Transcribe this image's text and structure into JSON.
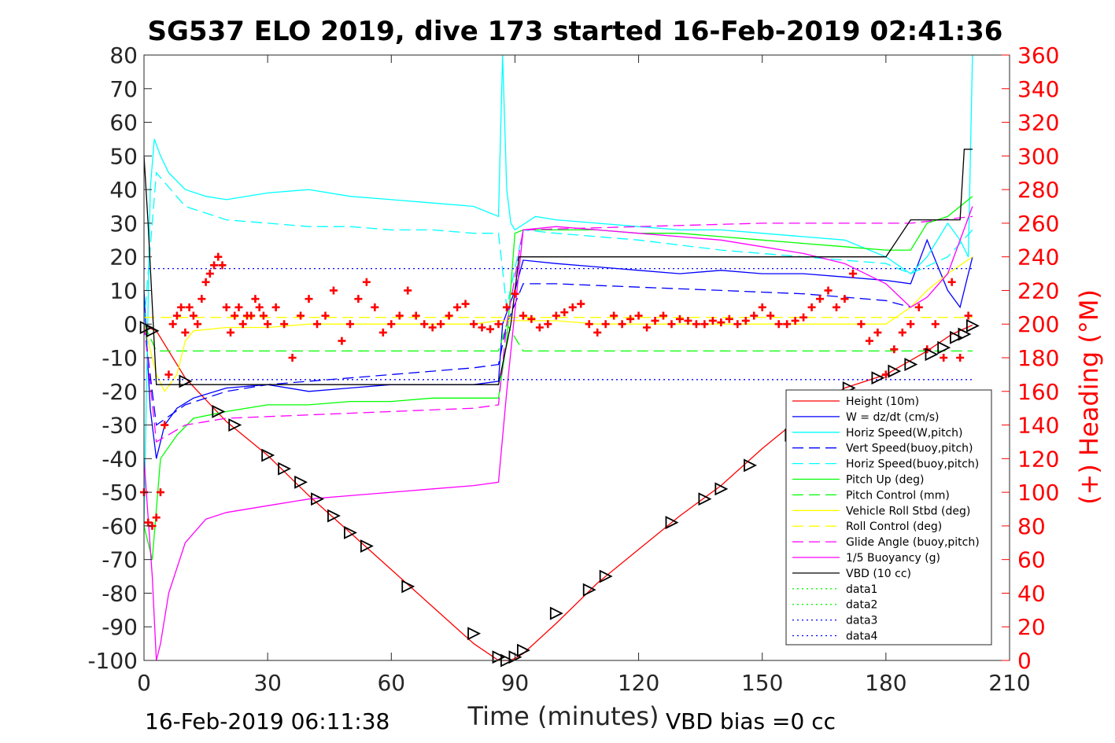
{
  "chart_data": {
    "type": "line",
    "title": "SG537 ELO 2019, dive 173 started 16-Feb-2019 02:41:36",
    "xlabel": "Time (minutes)",
    "ylabel_right": "(+) Heading (°M)",
    "xlim": [
      0,
      210
    ],
    "ylim": [
      -100,
      80
    ],
    "ylim_right": [
      0,
      360
    ],
    "xticks": [
      "0",
      "30",
      "60",
      "90",
      "120",
      "150",
      "180",
      "210"
    ],
    "yticks": [
      "80",
      "70",
      "60",
      "50",
      "40",
      "30",
      "20",
      "10",
      "0",
      "-10",
      "-20",
      "-30",
      "-40",
      "-50",
      "-60",
      "-70",
      "-80",
      "-90",
      "-100"
    ],
    "yticks_right": [
      "360",
      "340",
      "320",
      "300",
      "280",
      "260",
      "240",
      "220",
      "200",
      "180",
      "160",
      "140",
      "120",
      "100",
      "80",
      "60",
      "40",
      "20",
      "0"
    ],
    "footer_left": "16-Feb-2019 06:11:38",
    "footer_right": "VBD bias =0 cc",
    "legend_position": "bottom-right",
    "series": [
      {
        "name": "Height (10m)",
        "color": "#ff0000",
        "style": "solid",
        "x": [
          0,
          3,
          10,
          20,
          30,
          40,
          50,
          60,
          70,
          80,
          86,
          89,
          92,
          100,
          110,
          120,
          130,
          140,
          150,
          160,
          170,
          180,
          190,
          196,
          201
        ],
        "y": [
          -0.5,
          -2,
          -16,
          -29,
          -39,
          -51,
          -62,
          -73,
          -84,
          -95,
          -100,
          -100,
          -98,
          -89,
          -77,
          -67,
          -57,
          -48,
          -37,
          -27,
          -19,
          -15,
          -8,
          -3,
          -0.3
        ]
      },
      {
        "name": "W = dz/dt (cm/s)",
        "color": "#0000ff",
        "style": "solid",
        "x": [
          0,
          1.5,
          3,
          5,
          8,
          12,
          20,
          30,
          40,
          50,
          60,
          70,
          80,
          86,
          87,
          90,
          92,
          100,
          110,
          120,
          130,
          140,
          150,
          160,
          170,
          180,
          186,
          190,
          195,
          198,
          201
        ],
        "y": [
          10,
          -25,
          -40,
          -30,
          -25,
          -22,
          -19,
          -18,
          -20,
          -19,
          -18,
          -18,
          -18,
          -17,
          0,
          10,
          19,
          18,
          17,
          16,
          15,
          16,
          15,
          15,
          14,
          13,
          12,
          25,
          10,
          5,
          20
        ]
      },
      {
        "name": "Horiz Speed(W,pitch)",
        "color": "#00ffff",
        "style": "solid",
        "x": [
          0,
          1.5,
          2.5,
          4,
          6,
          10,
          15,
          20,
          30,
          40,
          50,
          60,
          70,
          80,
          86,
          87,
          88,
          89,
          90,
          95,
          100,
          110,
          120,
          130,
          140,
          150,
          160,
          170,
          180,
          186,
          190,
          195,
          198,
          200,
          201
        ],
        "y": [
          -60,
          40,
          55,
          50,
          45,
          40,
          38,
          37,
          39,
          40,
          38,
          37,
          36,
          35,
          32,
          80,
          40,
          30,
          28,
          32,
          31,
          30,
          29,
          28,
          28,
          27,
          26,
          25,
          20,
          15,
          20,
          30,
          25,
          20,
          80
        ]
      },
      {
        "name": "Vert Speed(buoy,pitch)",
        "color": "#0000ff",
        "style": "dashed",
        "x": [
          0,
          3,
          10,
          20,
          30,
          40,
          50,
          60,
          70,
          80,
          86,
          88,
          92,
          100,
          120,
          140,
          160,
          180,
          186
        ],
        "y": [
          0,
          -30,
          -24,
          -20,
          -18,
          -17,
          -16,
          -15,
          -14,
          -13,
          -12,
          0,
          12,
          12,
          11,
          10,
          9,
          7,
          5
        ]
      },
      {
        "name": "Horiz Speed(buoy,pitch)",
        "color": "#00ffff",
        "style": "dashed",
        "x": [
          0,
          3,
          10,
          20,
          30,
          40,
          50,
          60,
          70,
          80,
          86,
          88,
          92,
          100,
          120,
          140,
          160,
          180,
          186,
          195,
          201
        ],
        "y": [
          0,
          45,
          35,
          31,
          30,
          29,
          29,
          28,
          28,
          27,
          27,
          5,
          28,
          27,
          25,
          22,
          20,
          18,
          15,
          20,
          28
        ]
      },
      {
        "name": "Pitch Up (deg)",
        "color": "#00ff00",
        "style": "solid",
        "x": [
          0,
          2,
          4,
          8,
          12,
          20,
          30,
          40,
          50,
          60,
          70,
          80,
          86,
          88,
          90,
          92,
          100,
          110,
          120,
          130,
          140,
          150,
          160,
          170,
          180,
          186,
          190,
          195,
          201
        ],
        "y": [
          -60,
          -70,
          -40,
          -33,
          -28,
          -26,
          -24,
          -24,
          -23,
          -23,
          -22,
          -22,
          -22,
          -5,
          27,
          28,
          28,
          28,
          27,
          27,
          26,
          25,
          24,
          23,
          22,
          22,
          30,
          32,
          38
        ]
      },
      {
        "name": "Pitch Control (mm)",
        "color": "#00ff00",
        "style": "dashed",
        "x": [
          0,
          3,
          20,
          40,
          60,
          80,
          86,
          88,
          92,
          120,
          150,
          180,
          186,
          201
        ],
        "y": [
          0,
          -8,
          -8,
          -8,
          -8,
          -8,
          -8,
          0,
          -8,
          -8,
          -8,
          -8,
          -8,
          -8
        ]
      },
      {
        "name": "Vehicle Roll Stbd (deg)",
        "color": "#ffff00",
        "style": "solid",
        "x": [
          0,
          3,
          5,
          8,
          10,
          12,
          20,
          30,
          40,
          50,
          60,
          70,
          80,
          86,
          90,
          100,
          110,
          120,
          130,
          140,
          150,
          160,
          170,
          180,
          186,
          190,
          195,
          201
        ],
        "y": [
          0,
          -15,
          -20,
          -15,
          -5,
          -2,
          -1,
          -1,
          0,
          0,
          0,
          0,
          0,
          1,
          1,
          1,
          0,
          0,
          0,
          0,
          0,
          0,
          0,
          0,
          5,
          10,
          15,
          20
        ]
      },
      {
        "name": "Roll Control (deg)",
        "color": "#ffff00",
        "style": "dashed",
        "x": [
          0,
          10,
          20,
          40,
          60,
          80,
          86,
          90,
          120,
          150,
          180,
          201
        ],
        "y": [
          2,
          2,
          2,
          2,
          2,
          2,
          2,
          2,
          2,
          2,
          2,
          2
        ]
      },
      {
        "name": "Glide Angle (buoy,pitch)",
        "color": "#ff00ff",
        "style": "dashed",
        "x": [
          0,
          3,
          10,
          20,
          40,
          60,
          80,
          86,
          88,
          92,
          120,
          150,
          180,
          186,
          201
        ],
        "y": [
          0,
          -35,
          -30,
          -28,
          -27,
          -26,
          -25,
          -24,
          0,
          28,
          29,
          30,
          30,
          30,
          32
        ]
      },
      {
        "name": "1/5 Buoyancy (g)",
        "color": "#ff00ff",
        "style": "solid",
        "x": [
          0,
          2,
          3,
          4,
          6,
          10,
          15,
          20,
          30,
          40,
          50,
          60,
          70,
          80,
          86,
          88,
          92,
          100,
          110,
          120,
          130,
          140,
          150,
          160,
          170,
          180,
          186,
          190,
          195,
          201
        ],
        "y": [
          -40,
          -75,
          -100,
          -95,
          -80,
          -65,
          -58,
          -56,
          -54,
          -52,
          -51,
          -50,
          -49,
          -48,
          -47,
          -20,
          28,
          29,
          28,
          27,
          26,
          25,
          23,
          21,
          18,
          12,
          5,
          8,
          15,
          35
        ]
      },
      {
        "name": "VBD (10 cc)",
        "color": "#000000",
        "style": "solid",
        "x": [
          0,
          1,
          3,
          10,
          40,
          86,
          89,
          91,
          180,
          186,
          198,
          199,
          201
        ],
        "y": [
          50,
          30,
          -18,
          -18,
          -18,
          -18,
          0,
          20,
          20,
          31,
          31,
          52,
          52
        ]
      },
      {
        "name": "data1",
        "color": "#00ff00",
        "style": "dotted",
        "x": [],
        "y": []
      },
      {
        "name": "data2",
        "color": "#00ff00",
        "style": "dotted",
        "x": [],
        "y": []
      },
      {
        "name": "data3",
        "color": "#0000ff",
        "style": "dotted",
        "x": [
          0,
          201
        ],
        "y": [
          16.5,
          16.5
        ]
      },
      {
        "name": "data4",
        "color": "#0000ff",
        "style": "dotted",
        "x": [
          0,
          201
        ],
        "y": [
          -16.5,
          -16.5
        ]
      }
    ],
    "heading": {
      "color": "#ff0000",
      "marker": "+",
      "axis": "right",
      "x": [
        0,
        1,
        2,
        3,
        4,
        5,
        6,
        7,
        8,
        9,
        10,
        11,
        12,
        13,
        14,
        15,
        16,
        17,
        18,
        19,
        20,
        21,
        22,
        23,
        24,
        25,
        26,
        27,
        28,
        29,
        30,
        32,
        34,
        36,
        38,
        40,
        42,
        44,
        46,
        48,
        50,
        52,
        54,
        56,
        58,
        60,
        62,
        64,
        66,
        68,
        70,
        72,
        74,
        76,
        78,
        80,
        82,
        84,
        86,
        88,
        90,
        92,
        94,
        96,
        98,
        100,
        102,
        104,
        106,
        108,
        110,
        112,
        114,
        116,
        118,
        120,
        122,
        124,
        126,
        128,
        130,
        132,
        134,
        136,
        138,
        140,
        142,
        144,
        146,
        148,
        150,
        152,
        154,
        156,
        158,
        160,
        162,
        164,
        166,
        168,
        170,
        172,
        174,
        176,
        178,
        180,
        182,
        184,
        186,
        188,
        190,
        192,
        194,
        196,
        198,
        200
      ],
      "y": [
        100,
        82,
        80,
        85,
        100,
        140,
        170,
        200,
        205,
        210,
        195,
        210,
        205,
        200,
        215,
        225,
        230,
        235,
        240,
        235,
        210,
        195,
        205,
        210,
        200,
        205,
        205,
        215,
        210,
        205,
        200,
        210,
        200,
        180,
        205,
        215,
        200,
        205,
        220,
        190,
        200,
        215,
        225,
        210,
        195,
        200,
        205,
        220,
        205,
        200,
        198,
        200,
        205,
        210,
        212,
        200,
        198,
        197,
        200,
        210,
        218,
        205,
        203,
        198,
        200,
        205,
        207,
        210,
        212,
        200,
        195,
        200,
        205,
        200,
        203,
        205,
        198,
        202,
        205,
        200,
        203,
        202,
        200,
        200,
        202,
        201,
        203,
        200,
        202,
        205,
        210,
        205,
        200,
        200,
        202,
        204,
        210,
        215,
        220,
        210,
        215,
        230,
        200,
        190,
        195,
        170,
        185,
        195,
        200,
        210,
        185,
        200,
        180,
        225,
        180,
        205
      ]
    },
    "samples": {
      "color": "#000000",
      "marker": "triangle",
      "x": [
        0.5,
        2,
        10,
        18,
        22,
        30,
        34,
        38,
        42,
        46,
        50,
        54,
        64,
        80,
        86,
        88,
        90,
        92,
        100,
        108,
        112,
        128,
        136,
        140,
        147,
        157,
        164,
        171,
        178,
        182,
        186,
        191,
        194,
        197,
        199,
        201
      ],
      "y": [
        -1,
        -2,
        -17,
        -26,
        -30,
        -39,
        -43,
        -47,
        -52,
        -57,
        -62,
        -66,
        -78,
        -92,
        -99,
        -100,
        -99,
        -97,
        -86,
        -79,
        -75,
        -59,
        -52,
        -49,
        -42,
        -33,
        -26,
        -19,
        -16,
        -14,
        -12,
        -9,
        -7,
        -4,
        -3,
        -0.5
      ]
    }
  }
}
